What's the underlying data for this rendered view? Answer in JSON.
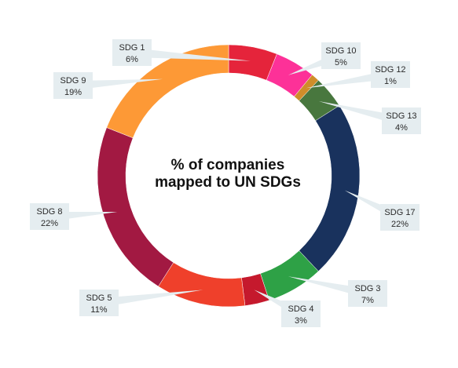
{
  "chart_data": {
    "type": "pie",
    "style": "donut",
    "title_line1": "% of companies",
    "title_line2": "mapped to UN SDGs",
    "slices": [
      {
        "name": "SDG 1",
        "value": 6,
        "label": "SDG 1",
        "pct": "6%",
        "color": "#E5243B"
      },
      {
        "name": "SDG 10",
        "value": 5,
        "label": "SDG 10",
        "pct": "5%",
        "color": "#FD3198"
      },
      {
        "name": "SDG 12",
        "value": 1,
        "label": "SDG 12",
        "pct": "1%",
        "color": "#CF8D2A"
      },
      {
        "name": "SDG 13",
        "value": 4,
        "label": "SDG 13",
        "pct": "4%",
        "color": "#48773E"
      },
      {
        "name": "SDG 17",
        "value": 22,
        "label": "SDG 17",
        "pct": "22%",
        "color": "#19325D"
      },
      {
        "name": "SDG 3",
        "value": 7,
        "label": "SDG 3",
        "pct": "7%",
        "color": "#2EA146"
      },
      {
        "name": "SDG 4",
        "value": 3,
        "label": "SDG 4",
        "pct": "3%",
        "color": "#C5192D"
      },
      {
        "name": "SDG 5",
        "value": 11,
        "label": "SDG 5",
        "pct": "11%",
        "color": "#EF402B"
      },
      {
        "name": "SDG 8",
        "value": 22,
        "label": "SDG 8",
        "pct": "22%",
        "color": "#A21942"
      },
      {
        "name": "SDG 9",
        "value": 19,
        "label": "SDG 9",
        "pct": "19%",
        "color": "#FD9936"
      }
    ],
    "label_box_color": "#E5EDF0",
    "legend": "none"
  }
}
